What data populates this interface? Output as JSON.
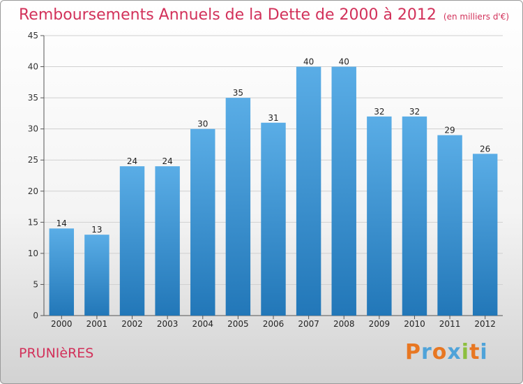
{
  "title": "Remboursements Annuels de la Dette de 2000 à 2012",
  "unit": "(en milliers d'€)",
  "commune": "PRUNIèRES",
  "logo": {
    "text": "Proxiti",
    "letters": [
      {
        "ch": "P",
        "color": "#e87722"
      },
      {
        "ch": "r",
        "color": "#4fa3d9"
      },
      {
        "ch": "o",
        "color": "#e87722"
      },
      {
        "ch": "x",
        "color": "#4fa3d9"
      },
      {
        "ch": "i",
        "color": "#8cbf3f"
      },
      {
        "ch": "t",
        "color": "#e87722"
      },
      {
        "ch": "i",
        "color": "#4fa3d9"
      }
    ]
  },
  "colors": {
    "title": "#d2315a",
    "bar_top": "#5aade6",
    "bar_bottom": "#2277b8",
    "grid": "#d0d0d0"
  },
  "chart_data": {
    "type": "bar",
    "title": "Remboursements Annuels de la Dette de 2000 à 2012",
    "categories": [
      "2000",
      "2001",
      "2002",
      "2003",
      "2004",
      "2005",
      "2006",
      "2007",
      "2008",
      "2009",
      "2010",
      "2011",
      "2012"
    ],
    "values": [
      14,
      13,
      24,
      24,
      30,
      35,
      31,
      40,
      40,
      32,
      32,
      29,
      26
    ],
    "ylim": [
      0,
      45
    ],
    "yticks": [
      0,
      5,
      10,
      15,
      20,
      25,
      30,
      35,
      40,
      45
    ],
    "grid": true,
    "data_labels": true
  }
}
